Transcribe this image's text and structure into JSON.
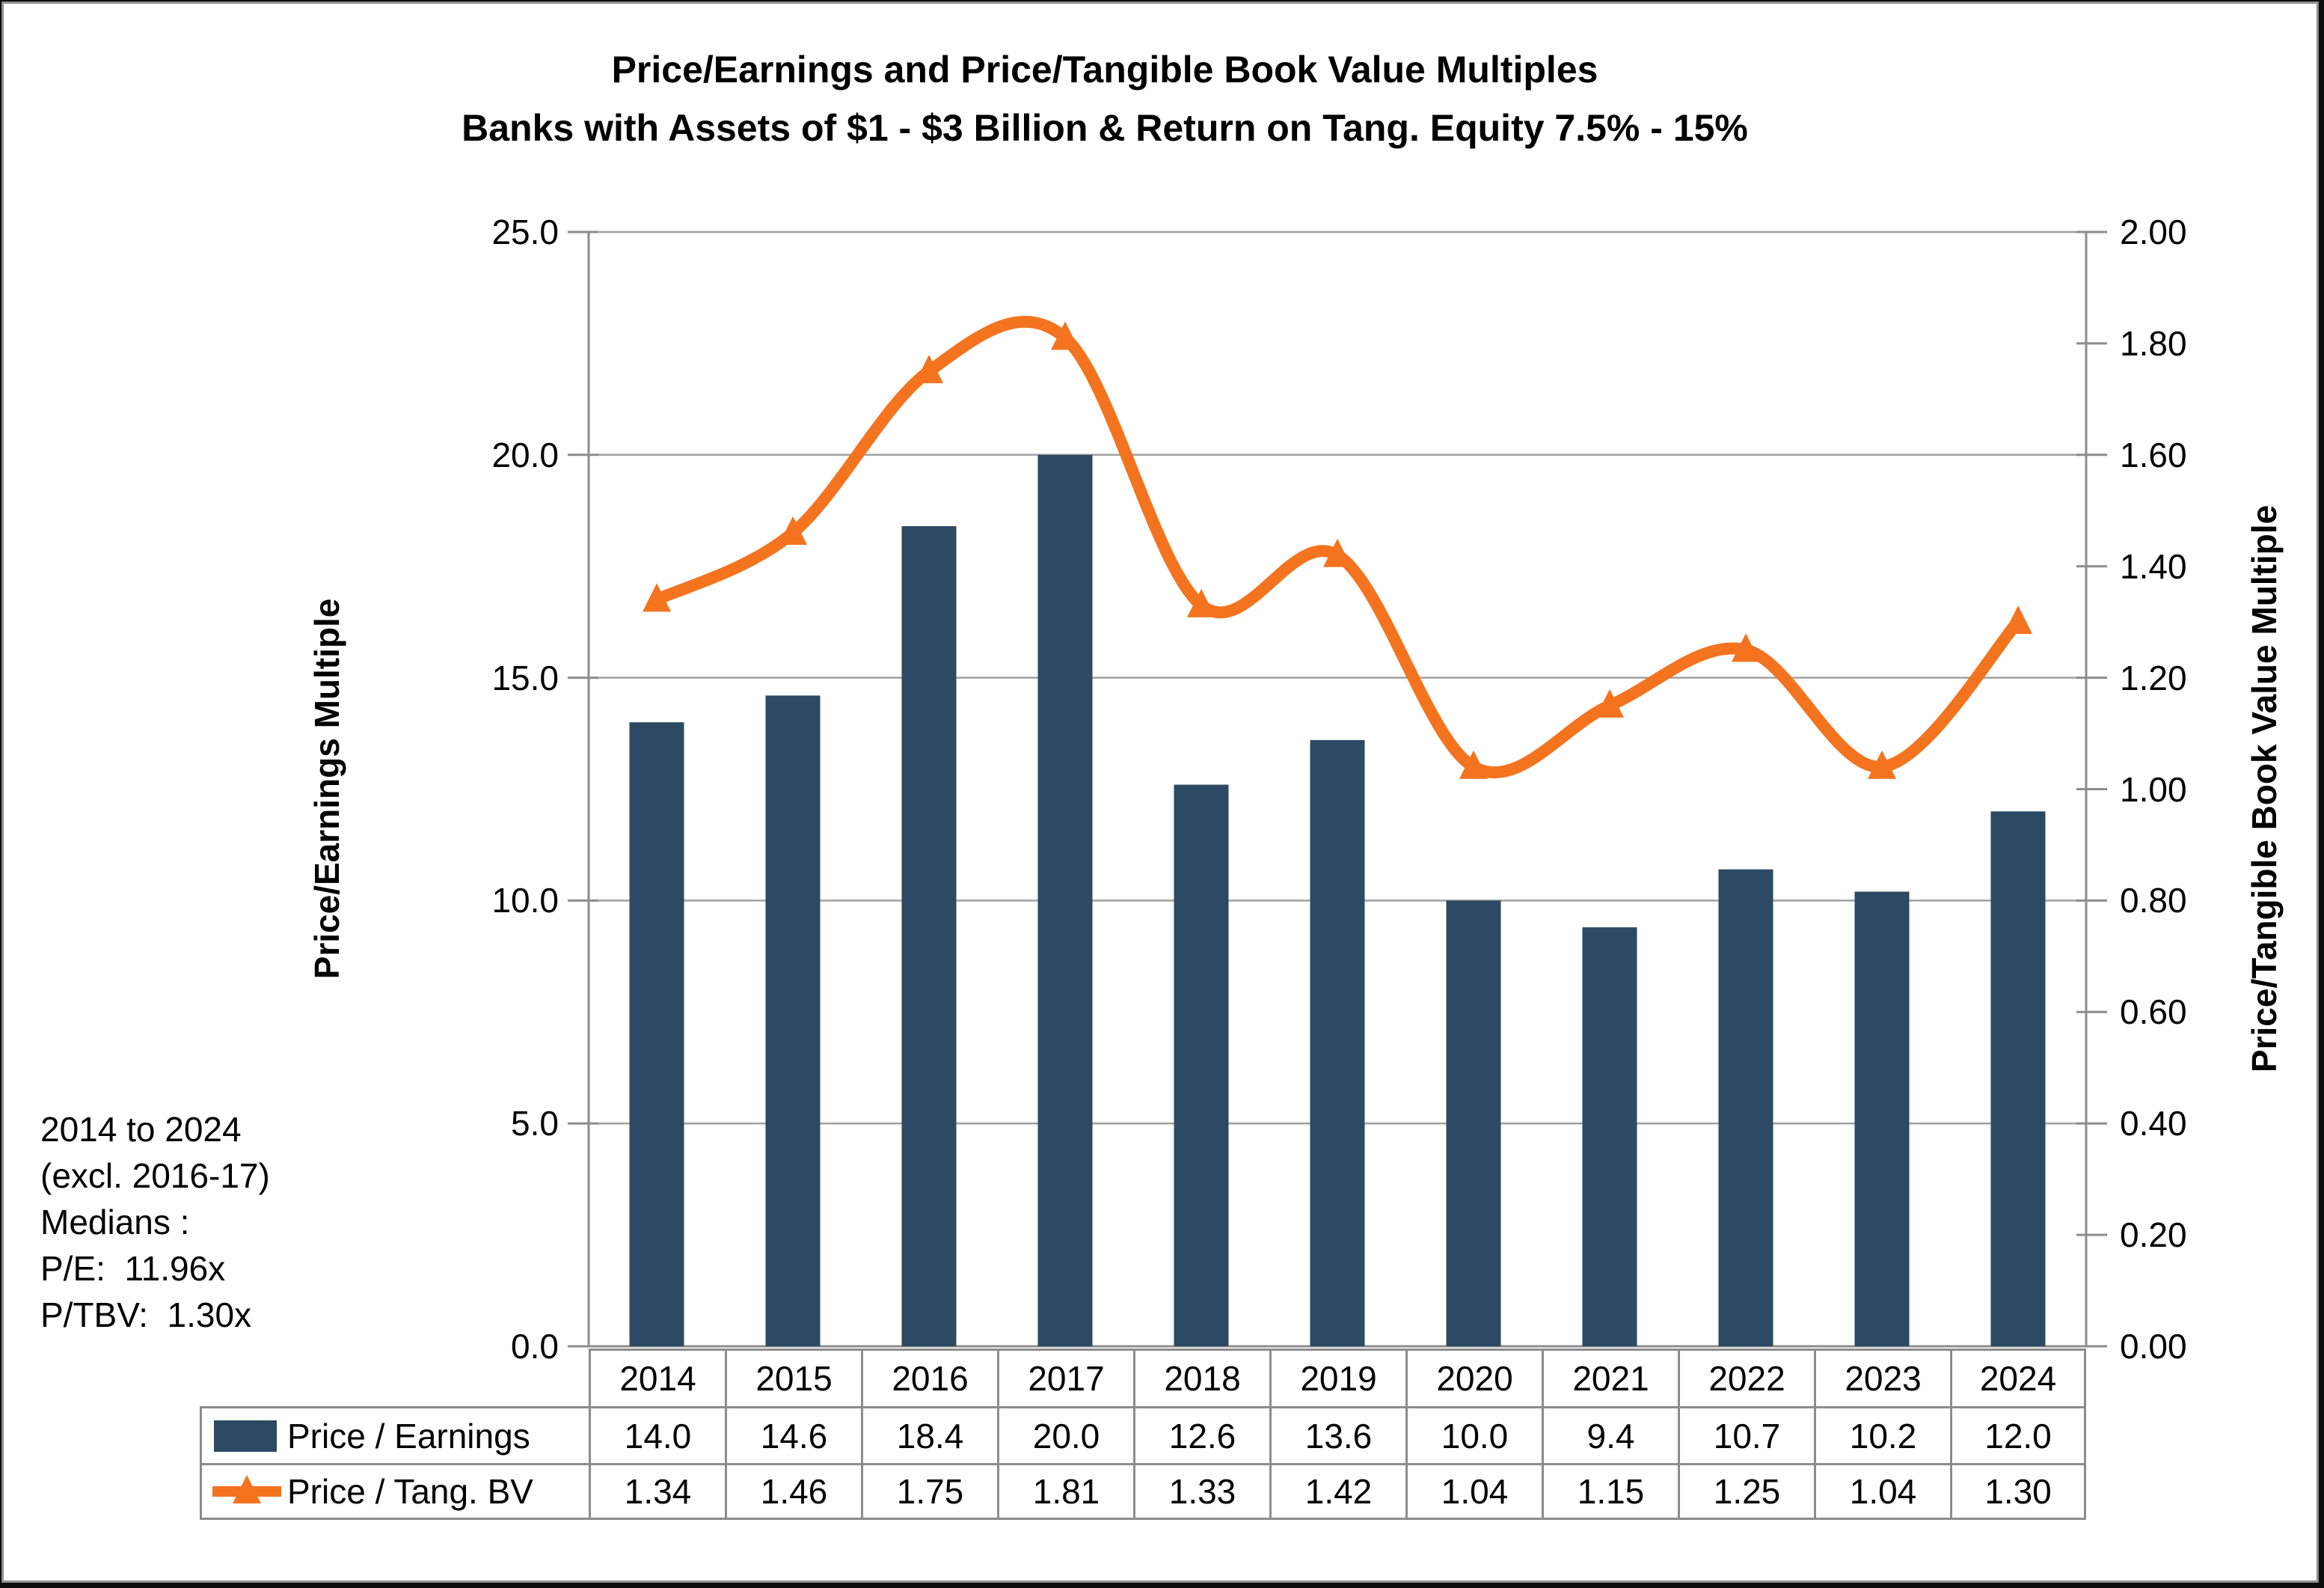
{
  "title": {
    "line1": "Price/Earnings and Price/Tangible Book Value Multiples",
    "line2": "Banks with Assets of $1 - $3 Billion & Return on Tang. Equity 7.5% - 15%"
  },
  "annotation": {
    "lines": [
      "2014 to 2024",
      "(excl. 2016-17)",
      "Medians :",
      "P/E:  11.96x",
      "P/TBV:  1.30x"
    ]
  },
  "chart_data": {
    "type": "bar",
    "subtype": "combo-bar-line-dual-axis",
    "categories": [
      "2014",
      "2015",
      "2016",
      "2017",
      "2018",
      "2019",
      "2020",
      "2021",
      "2022",
      "2023",
      "2024"
    ],
    "series": [
      {
        "name": "Price / Earnings",
        "type": "bar",
        "axis": "left",
        "values": [
          14.0,
          14.6,
          18.4,
          20.0,
          12.6,
          13.6,
          10.0,
          9.4,
          10.7,
          10.2,
          12.0
        ],
        "value_labels": [
          "14.0",
          "14.6",
          "18.4",
          "20.0",
          "12.6",
          "13.6",
          "10.0",
          "9.4",
          "10.7",
          "10.2",
          "12.0"
        ],
        "color": "#2C4A63"
      },
      {
        "name": "Price / Tang. BV",
        "type": "line",
        "axis": "right",
        "smooth": true,
        "marker": "triangle",
        "values": [
          1.34,
          1.46,
          1.75,
          1.81,
          1.33,
          1.42,
          1.04,
          1.15,
          1.25,
          1.04,
          1.3
        ],
        "value_labels": [
          "1.34",
          "1.46",
          "1.75",
          "1.81",
          "1.33",
          "1.42",
          "1.04",
          "1.15",
          "1.25",
          "1.04",
          "1.30"
        ],
        "color": "#F4731E"
      }
    ],
    "left_axis": {
      "label": "Price/Earnings Multiple",
      "min": 0,
      "max": 25,
      "tick_labels": [
        "25.0",
        "20.0",
        "15.0",
        "10.0",
        "5.0",
        "0.0"
      ]
    },
    "right_axis": {
      "label": "Price/Tangible Book Value Multiple",
      "min": 0,
      "max": 2,
      "tick_labels": [
        "2.00",
        "1.80",
        "1.60",
        "1.40",
        "1.20",
        "1.00",
        "0.80",
        "0.60",
        "0.40",
        "0.20",
        "0.00"
      ]
    },
    "grid": true,
    "legend_position": "data-table-left",
    "colors": {
      "bar": "#2C4A63",
      "line": "#F4731E",
      "gridline": "#A0A0A0",
      "axis": "#8c8c8c",
      "table_border": "#8c8c8c",
      "text": "#000000"
    }
  }
}
